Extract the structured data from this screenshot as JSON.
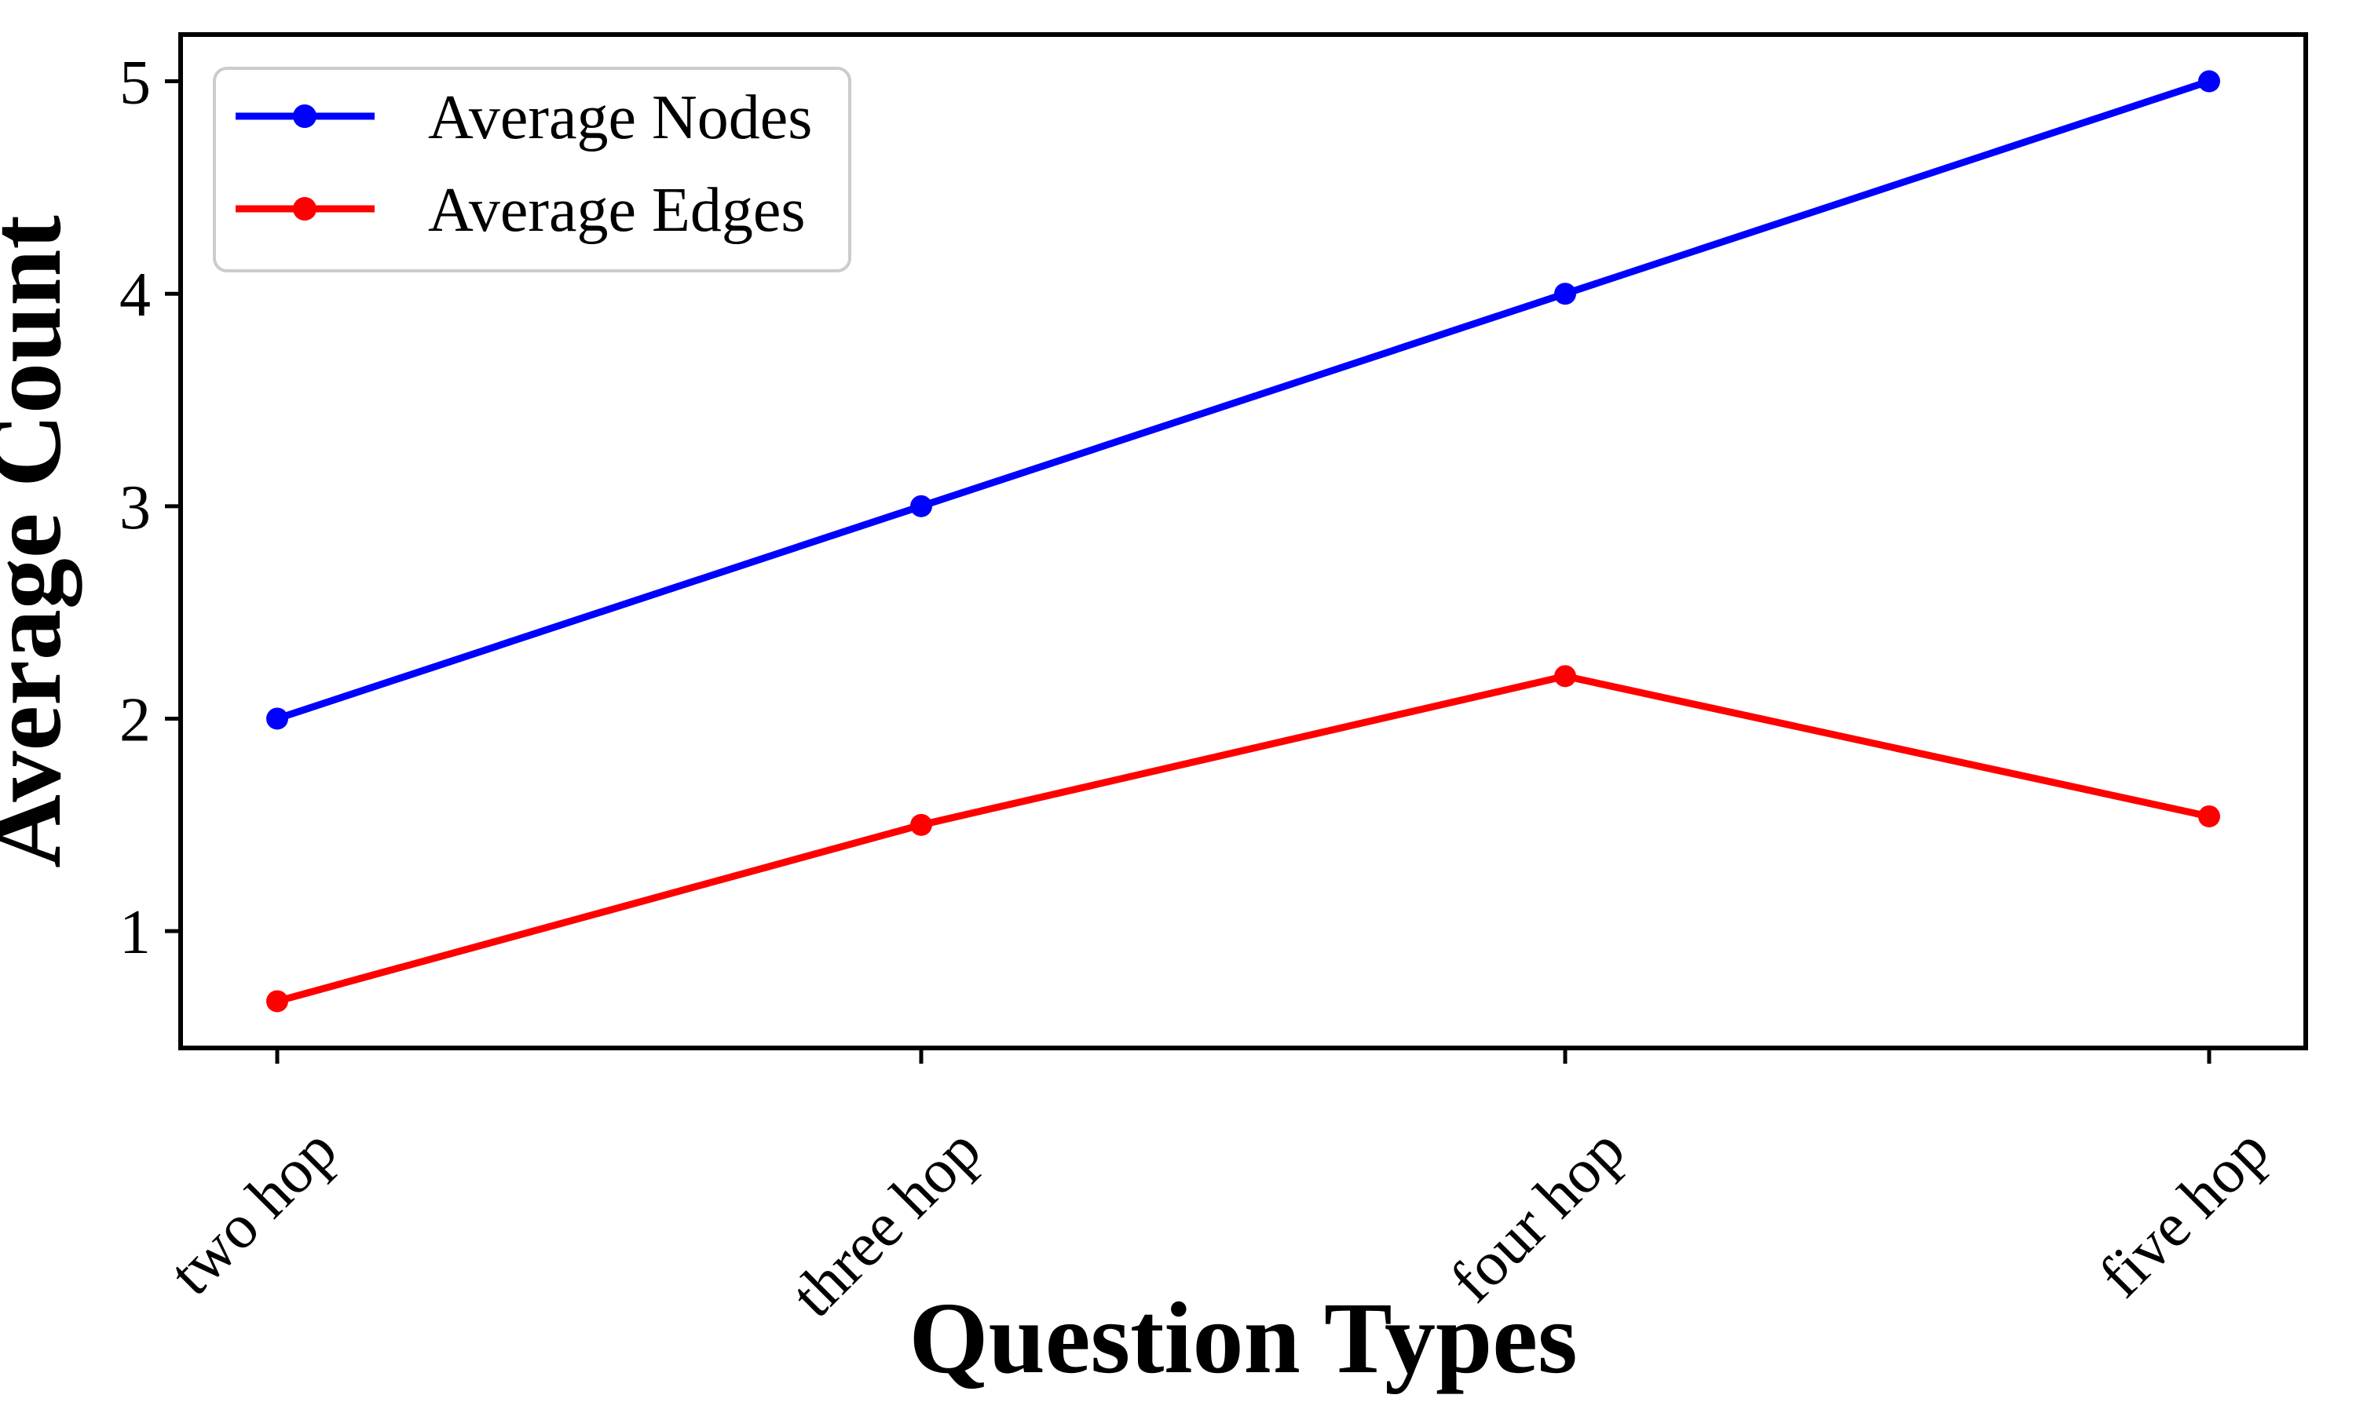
{
  "chart_data": {
    "type": "line",
    "categories": [
      "two hop",
      "three hop",
      "four hop",
      "five hop"
    ],
    "series": [
      {
        "name": "Average Nodes",
        "color": "#0000FF",
        "values": [
          2,
          3,
          4,
          5
        ]
      },
      {
        "name": "Average Edges",
        "color": "#FF0000",
        "values": [
          0.67,
          1.5,
          2.2,
          1.54
        ]
      }
    ],
    "title": "",
    "xlabel": "Question Types",
    "ylabel": "Average Count",
    "yticks": [
      1,
      2,
      3,
      4,
      5
    ],
    "ylim": [
      0.45,
      5.22
    ],
    "xlim": [
      -0.15,
      3.15
    ],
    "grid": false,
    "legend_position": "upper-left",
    "x_tick_rotation_deg": 45,
    "axis_color": "#000000",
    "legend_border_color": "#CCCCCC"
  }
}
